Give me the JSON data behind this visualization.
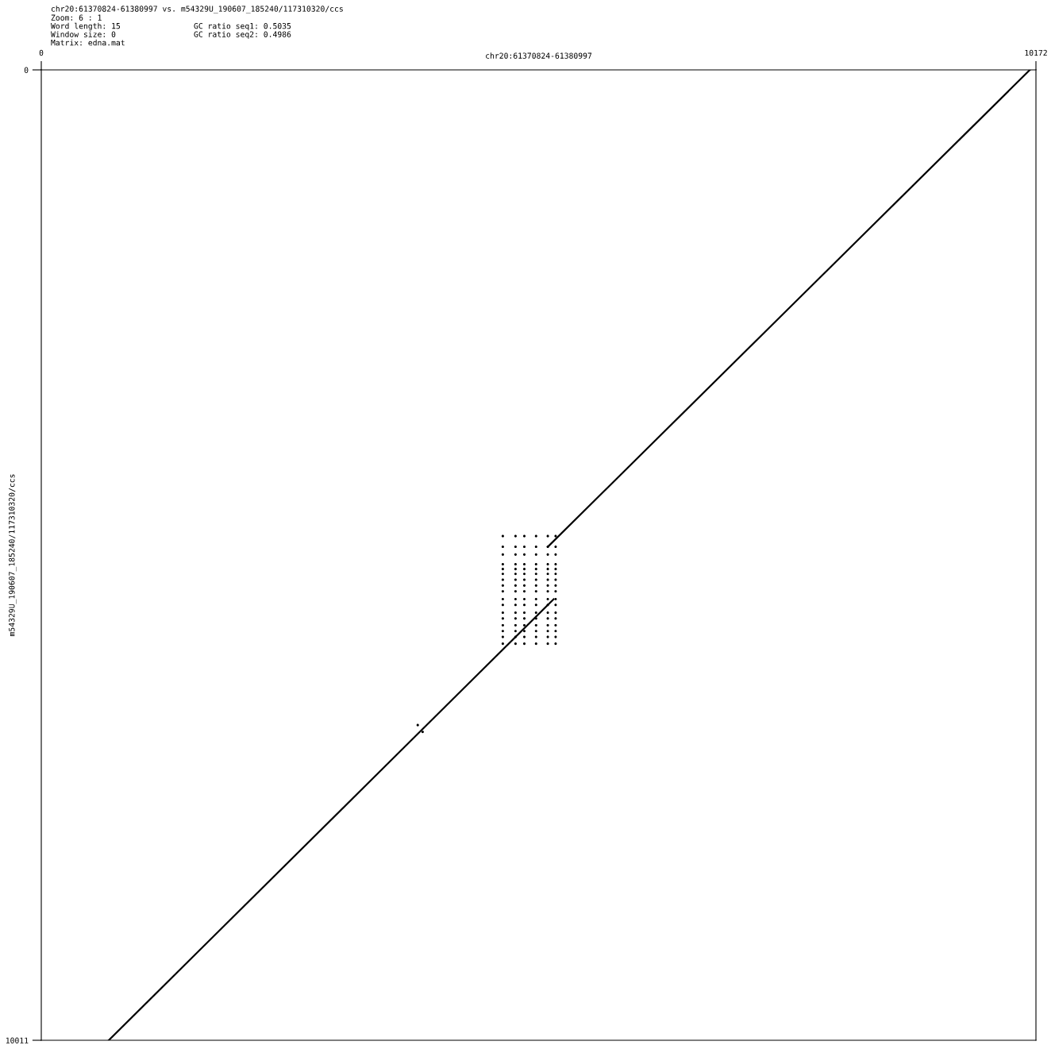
{
  "chart_data": {
    "type": "line",
    "title": "chr20:61370824-61380997 vs. m54329U_190607_185240/117310320/ccs",
    "xlabel": "chr20:61370824-61380997",
    "ylabel": "m54329U_190607_185240/117310320/ccs",
    "annotations": [
      "Zoom: 6 : 1",
      "Word length: 15",
      "Window size: 0",
      "Matrix: edna.mat",
      "GC ratio seq1: 0.5035",
      "GC ratio seq2: 0.4986"
    ],
    "xlim": [
      0,
      10172
    ],
    "ylim": [
      10011,
      0
    ],
    "xticks": [
      0,
      10172
    ],
    "yticks": [
      0,
      10011
    ],
    "grid": false,
    "legend": false,
    "series": [
      {
        "color": "#000000",
        "x": [
          10110,
          5180
        ],
        "values": [
          0,
          4920
        ]
      },
      {
        "color": "#000000",
        "x": [
          5240,
          690
        ],
        "values": [
          5460,
          10011
        ]
      },
      {
        "type": "scatter",
        "color": "#000000",
        "marker": "circle",
        "x": [
          3850,
          3900
        ],
        "values": [
          6760,
          6830
        ]
      },
      {
        "type": "scatter",
        "color": "#000000",
        "marker": "circle",
        "x": [
          4720,
          4850,
          4940,
          5060,
          5180,
          5260,
          4720,
          4850,
          4940,
          5060,
          5180,
          5260,
          4720,
          4850,
          4940,
          5060,
          5180,
          5260,
          4720,
          4850,
          4940,
          5060,
          5180,
          5260,
          4720,
          4850,
          4940,
          5060,
          5180,
          5260,
          4720,
          4850,
          4940,
          5060,
          5180,
          5260,
          4720,
          4850,
          4940,
          5060,
          5180,
          5260,
          4720,
          4850,
          4940,
          5060,
          5180,
          5260,
          4720,
          4850,
          4940,
          5060,
          5180,
          5260,
          4720,
          4850,
          4940,
          5060,
          5180,
          5260,
          4720,
          4850,
          4940,
          5060,
          5180,
          5260,
          4720,
          4850,
          4940,
          5060,
          5180,
          5260,
          4720,
          4850,
          4940,
          5060,
          5180,
          5260,
          4720,
          4850,
          4940,
          5060,
          5180,
          5260,
          4720,
          4850,
          4940,
          5060,
          5180,
          5260,
          4720,
          4850,
          4940,
          5060,
          5180,
          5260,
          4720,
          4850,
          4940,
          5060,
          5180,
          5260
        ],
        "values": [
          4810,
          4810,
          4810,
          4810,
          4810,
          4810,
          4920,
          4920,
          4920,
          4920,
          4920,
          4920,
          5000,
          5000,
          5000,
          5000,
          5000,
          5000,
          5100,
          5100,
          5100,
          5100,
          5100,
          5100,
          5150,
          5150,
          5150,
          5150,
          5150,
          5150,
          5200,
          5200,
          5200,
          5200,
          5200,
          5200,
          5260,
          5260,
          5260,
          5260,
          5260,
          5260,
          5320,
          5320,
          5320,
          5320,
          5320,
          5320,
          5380,
          5380,
          5380,
          5380,
          5380,
          5380,
          5460,
          5460,
          5460,
          5460,
          5460,
          5460,
          5520,
          5520,
          5520,
          5520,
          5520,
          5520,
          5600,
          5600,
          5600,
          5600,
          5600,
          5600,
          5660,
          5660,
          5660,
          5660,
          5660,
          5660,
          5730,
          5730,
          5730,
          5730,
          5730,
          5730,
          5790,
          5790,
          5790,
          5790,
          5790,
          5790,
          5850,
          5850,
          5850,
          5850,
          5850,
          5850,
          5920,
          5920,
          5920,
          5920,
          5920,
          5920
        ]
      }
    ]
  }
}
